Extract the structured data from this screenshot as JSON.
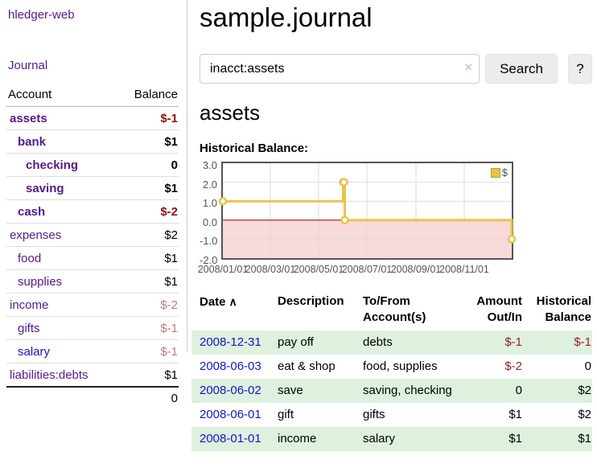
{
  "colors": {
    "link_purple": "#551a8b",
    "link_blue": "#1414cc",
    "negative_strong": "#8b1212",
    "negative_soft": "#bd7b7b",
    "negative_table": "#9b2020",
    "row_green": "#def0de"
  },
  "sidebar": {
    "brand": "hledger-web",
    "journal_link": "Journal",
    "accounts_table": {
      "headers": {
        "account": "Account",
        "balance": "Balance"
      },
      "rows": [
        {
          "name": "assets",
          "indent": 0,
          "bold": true,
          "balance": "$-1",
          "negative": "strong",
          "link": "purple"
        },
        {
          "name": "bank",
          "indent": 1,
          "bold": true,
          "balance": "$1",
          "negative": null,
          "link": "purple"
        },
        {
          "name": "checking",
          "indent": 2,
          "bold": true,
          "balance": "0",
          "negative": null,
          "link": "purple"
        },
        {
          "name": "saving",
          "indent": 2,
          "bold": true,
          "balance": "$1",
          "negative": null,
          "link": "purple"
        },
        {
          "name": "cash",
          "indent": 1,
          "bold": true,
          "balance": "$-2",
          "negative": "strong",
          "link": "purple"
        },
        {
          "name": "expenses",
          "indent": 0,
          "bold": false,
          "balance": "$2",
          "negative": null,
          "link": "purple"
        },
        {
          "name": "food",
          "indent": 1,
          "bold": false,
          "balance": "$1",
          "negative": null,
          "link": "purple"
        },
        {
          "name": "supplies",
          "indent": 1,
          "bold": false,
          "balance": "$1",
          "negative": null,
          "link": "purple"
        },
        {
          "name": "income",
          "indent": 0,
          "bold": false,
          "balance": "$-2",
          "negative": "soft",
          "link": "purple"
        },
        {
          "name": "gifts",
          "indent": 1,
          "bold": false,
          "balance": "$-1",
          "negative": "soft",
          "link": "purple"
        },
        {
          "name": "salary",
          "indent": 1,
          "bold": false,
          "balance": "$-1",
          "negative": "soft",
          "link": "blue"
        },
        {
          "name": "liabilities:debts",
          "indent": 0,
          "bold": false,
          "balance": "$1",
          "negative": null,
          "link": "purple"
        }
      ],
      "total": "0"
    }
  },
  "header": {
    "title": "sample.journal"
  },
  "search": {
    "value": "inacct:assets",
    "placeholder": "",
    "clear_icon": "×",
    "button_label": "Search",
    "help_label": "?"
  },
  "account_page": {
    "title": "assets",
    "chart_label": "Historical Balance:"
  },
  "chart_data": {
    "type": "line",
    "title": "Historical Balance",
    "step": true,
    "ylim": [
      -2,
      3
    ],
    "yticks": [
      {
        "value": 3,
        "label": "3.0"
      },
      {
        "value": 2,
        "label": "2.0"
      },
      {
        "value": 1,
        "label": "1.0"
      },
      {
        "value": 0,
        "label": "0.0"
      },
      {
        "value": -1,
        "label": "-1.0"
      },
      {
        "value": -2,
        "label": "-2.0"
      }
    ],
    "xticks": [
      {
        "pos": 0,
        "label": "2008/01/01"
      },
      {
        "pos": 16.44,
        "label": "2008/03/01"
      },
      {
        "pos": 33.15,
        "label": "2008/05/01"
      },
      {
        "pos": 49.86,
        "label": "2008/07/01"
      },
      {
        "pos": 66.85,
        "label": "2008/09/01"
      },
      {
        "pos": 83.56,
        "label": "2008/11/01"
      }
    ],
    "legend": [
      {
        "label": "$",
        "color": "#e8c34a"
      }
    ],
    "legend_position": "top-right",
    "grid": true,
    "grid_color": "#dcdcdc",
    "negative_region_color": "#f9dada",
    "zero_line_color": "#8b0000",
    "series": [
      {
        "name": "$",
        "color": "#e8c34a",
        "points": [
          {
            "date": "2008-01-01",
            "pos": 0,
            "value": 1
          },
          {
            "date": "2008-06-01",
            "pos": 41.64,
            "value": 2
          },
          {
            "date": "2008-06-02",
            "pos": 41.92,
            "value": 2
          },
          {
            "date": "2008-06-03",
            "pos": 42.19,
            "value": 0
          },
          {
            "date": "2008-12-31",
            "pos": 100,
            "value": -1
          }
        ]
      }
    ]
  },
  "register_table": {
    "headers": [
      "Date",
      "Description",
      "To/From Account(s)",
      "Amount Out/In",
      "Historical Balance"
    ],
    "sort": {
      "column": "Date",
      "direction": "ascending",
      "icon": "∧"
    },
    "rows": [
      {
        "date": "2008-12-31",
        "description": "pay off",
        "accounts": "debts",
        "amount": "$-1",
        "balance": "$-1"
      },
      {
        "date": "2008-06-03",
        "description": "eat & shop",
        "accounts": "food, supplies",
        "amount": "$-2",
        "balance": "0"
      },
      {
        "date": "2008-06-02",
        "description": "save",
        "accounts": "saving, checking",
        "amount": "0",
        "balance": "$2"
      },
      {
        "date": "2008-06-01",
        "description": "gift",
        "accounts": "gifts",
        "amount": "$1",
        "balance": "$2"
      },
      {
        "date": "2008-01-01",
        "description": "income",
        "accounts": "salary",
        "amount": "$1",
        "balance": "$1"
      }
    ]
  }
}
